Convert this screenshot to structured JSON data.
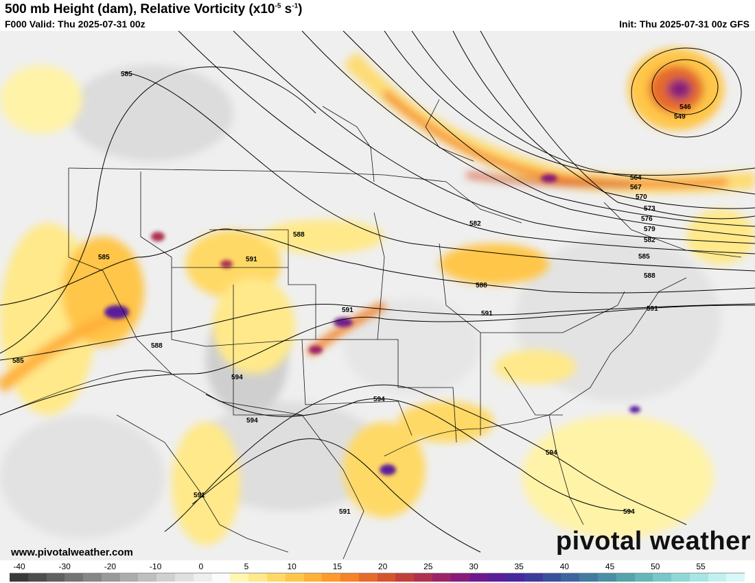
{
  "header": {
    "title_main": "500 mb Height (dam), Relative Vorticity (x10",
    "title_exp": "-5",
    "title_unit": " s",
    "title_unit_exp": "-1",
    "title_close": ")",
    "valid": "F000 Valid: Thu 2025-07-31 00z",
    "init": "Init: Thu 2025-07-31 00z GFS"
  },
  "footer": {
    "website": "www.pivotalweather.com",
    "brand": "pivotal weather"
  },
  "colorbar": {
    "labels": [
      "-40",
      "-30",
      "-20",
      "-10",
      "0",
      "5",
      "10",
      "15",
      "20",
      "25",
      "30",
      "35",
      "40",
      "45",
      "50",
      "55"
    ],
    "colors": [
      "#3a3a3a",
      "#4d4d4d",
      "#606060",
      "#737373",
      "#868686",
      "#999999",
      "#acacac",
      "#bfbfbf",
      "#d0d0d0",
      "#e0e0e0",
      "#eeeeee",
      "#fbfbfb",
      "#fff7b0",
      "#ffe98a",
      "#ffd966",
      "#ffc64a",
      "#ffb13a",
      "#ff9a2e",
      "#f5832a",
      "#e56b2a",
      "#d4552d",
      "#c1413a",
      "#ae3150",
      "#9a2466",
      "#861c7c",
      "#6f1a8c",
      "#5a1e98",
      "#48289e",
      "#3d3a9e",
      "#3a4f9e",
      "#3d659e",
      "#437a9f",
      "#4a8fa4",
      "#55a3ac",
      "#64b6b8",
      "#77c8c7",
      "#8dd8d6",
      "#a6e6e4",
      "#c0f1f0",
      "#d8f8f8"
    ]
  },
  "contours": {
    "labels": [
      "585",
      "585",
      "585",
      "588",
      "588",
      "588",
      "588",
      "591",
      "591",
      "591",
      "591",
      "591",
      "591",
      "594",
      "594",
      "594",
      "594",
      "594",
      "546",
      "549",
      "564",
      "567",
      "570",
      "573",
      "576",
      "579",
      "582",
      "582",
      "585"
    ]
  }
}
